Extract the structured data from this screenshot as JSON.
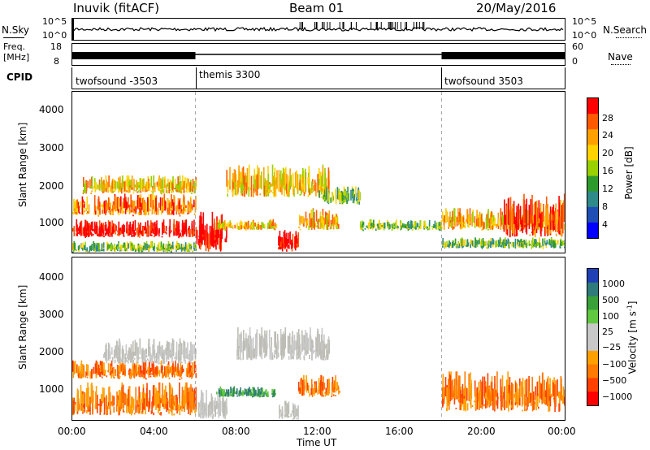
{
  "header": {
    "station": "Inuvik (fitACF)",
    "beam": "Beam 01",
    "date": "20/May/2016"
  },
  "noise_panel": {
    "left_label": "N.Sky",
    "left_ticks": [
      "10^5",
      "10^0"
    ],
    "right_label": "N.Search",
    "right_ticks": [
      "10^5",
      "10^0"
    ]
  },
  "freq_panel": {
    "left_label_1": "Freq.",
    "left_label_2": "[MHz]",
    "left_ticks": [
      "18",
      "8"
    ],
    "right_label": "Nave",
    "right_ticks": [
      "60",
      "0"
    ]
  },
  "cpid_panel": {
    "label": "CPID",
    "segments": [
      {
        "start_hour": 0,
        "end_hour": 6,
        "label": "twofsound -3503"
      },
      {
        "start_hour": 6,
        "end_hour": 18,
        "label": "themis 3300"
      },
      {
        "start_hour": 18,
        "end_hour": 24,
        "label": "twofsound 3503"
      }
    ]
  },
  "chart_data": [
    {
      "type": "heatmap",
      "name": "Power",
      "ylabel": "Slant Range [km]",
      "ylim": [
        180,
        4600
      ],
      "yticks": [
        "4000",
        "3000",
        "2000",
        "1000"
      ],
      "xlim_hours": [
        0,
        24
      ],
      "colorbar_label": "Power [dB]",
      "colorbar_ticks": [
        "28",
        "24",
        "20",
        "16",
        "12",
        "8",
        "4"
      ],
      "colorbar_colors": [
        "#ff0000",
        "#ff5a00",
        "#ffa000",
        "#ffd200",
        "#98d000",
        "#2e9a2e",
        "#2f8a8a",
        "#1f4fb4",
        "#0000ff"
      ],
      "regions": [
        {
          "t0": 0,
          "t1": 6,
          "r0": 200,
          "r1": 500,
          "level": 3
        },
        {
          "t0": 0,
          "t1": 6,
          "r0": 600,
          "r1": 1100,
          "level": 8
        },
        {
          "t0": 0,
          "t1": 6,
          "r0": 1200,
          "r1": 1800,
          "level": 6
        },
        {
          "t0": 0.5,
          "t1": 6,
          "r0": 1800,
          "r1": 2300,
          "level": 5
        },
        {
          "t0": 6,
          "t1": 7.5,
          "r0": 200,
          "r1": 1300,
          "level": 8
        },
        {
          "t0": 7,
          "t1": 10,
          "r0": 800,
          "r1": 1100,
          "level": 5
        },
        {
          "t0": 7.5,
          "t1": 12.5,
          "r0": 1700,
          "r1": 2600,
          "level": 5
        },
        {
          "t0": 10,
          "t1": 11,
          "r0": 200,
          "r1": 800,
          "level": 8
        },
        {
          "t0": 11,
          "t1": 13,
          "r0": 800,
          "r1": 1400,
          "level": 5
        },
        {
          "t0": 12,
          "t1": 14,
          "r0": 1500,
          "r1": 2000,
          "level": 3
        },
        {
          "t0": 14,
          "t1": 18,
          "r0": 800,
          "r1": 1100,
          "level": 3
        },
        {
          "t0": 18,
          "t1": 24,
          "r0": 300,
          "r1": 600,
          "level": 3
        },
        {
          "t0": 18,
          "t1": 24,
          "r0": 800,
          "r1": 1400,
          "level": 5
        },
        {
          "t0": 21,
          "t1": 24,
          "r0": 600,
          "r1": 1800,
          "level": 7
        }
      ]
    },
    {
      "type": "heatmap",
      "name": "Velocity",
      "ylabel": "Slant Range [km]",
      "ylim": [
        180,
        4600
      ],
      "yticks": [
        "4000",
        "3000",
        "2000",
        "1000"
      ],
      "xlim_hours": [
        0,
        24
      ],
      "xticks": [
        "00:00",
        "04:00",
        "08:00",
        "12:00",
        "16:00",
        "20:00",
        "00:00"
      ],
      "xlabel": "Time UT",
      "colorbar_label": "Velocity [m s",
      "colorbar_label_sup": "-1",
      "colorbar_label_end": "]",
      "colorbar_ticks": [
        "1000",
        "500",
        "100",
        "25",
        "−25",
        "−100",
        "−500",
        "−1000"
      ],
      "colorbar_colors": [
        "#1f3fb4",
        "#2f7a7a",
        "#3aa03a",
        "#60c840",
        "#c8c8c8",
        "#c8c8c8",
        "#ffa000",
        "#ff7a00",
        "#ff4000",
        "#ff0000"
      ],
      "regions": [
        {
          "t0": 0,
          "t1": 6,
          "r0": 300,
          "r1": 1200,
          "kind": "orange"
        },
        {
          "t0": 0,
          "t1": 6,
          "r0": 1300,
          "r1": 1800,
          "kind": "orange"
        },
        {
          "t0": 1.5,
          "t1": 6,
          "r0": 1700,
          "r1": 2400,
          "kind": "gray"
        },
        {
          "t0": 6,
          "t1": 7.5,
          "r0": 200,
          "r1": 1000,
          "kind": "gray"
        },
        {
          "t0": 8,
          "t1": 12.5,
          "r0": 1800,
          "r1": 2700,
          "kind": "gray"
        },
        {
          "t0": 7,
          "t1": 10,
          "r0": 800,
          "r1": 1100,
          "kind": "green"
        },
        {
          "t0": 10,
          "t1": 11,
          "r0": 200,
          "r1": 700,
          "kind": "gray"
        },
        {
          "t0": 11,
          "t1": 13,
          "r0": 800,
          "r1": 1400,
          "kind": "orange"
        },
        {
          "t0": 18,
          "t1": 24,
          "r0": 400,
          "r1": 1500,
          "kind": "orange"
        }
      ]
    }
  ]
}
